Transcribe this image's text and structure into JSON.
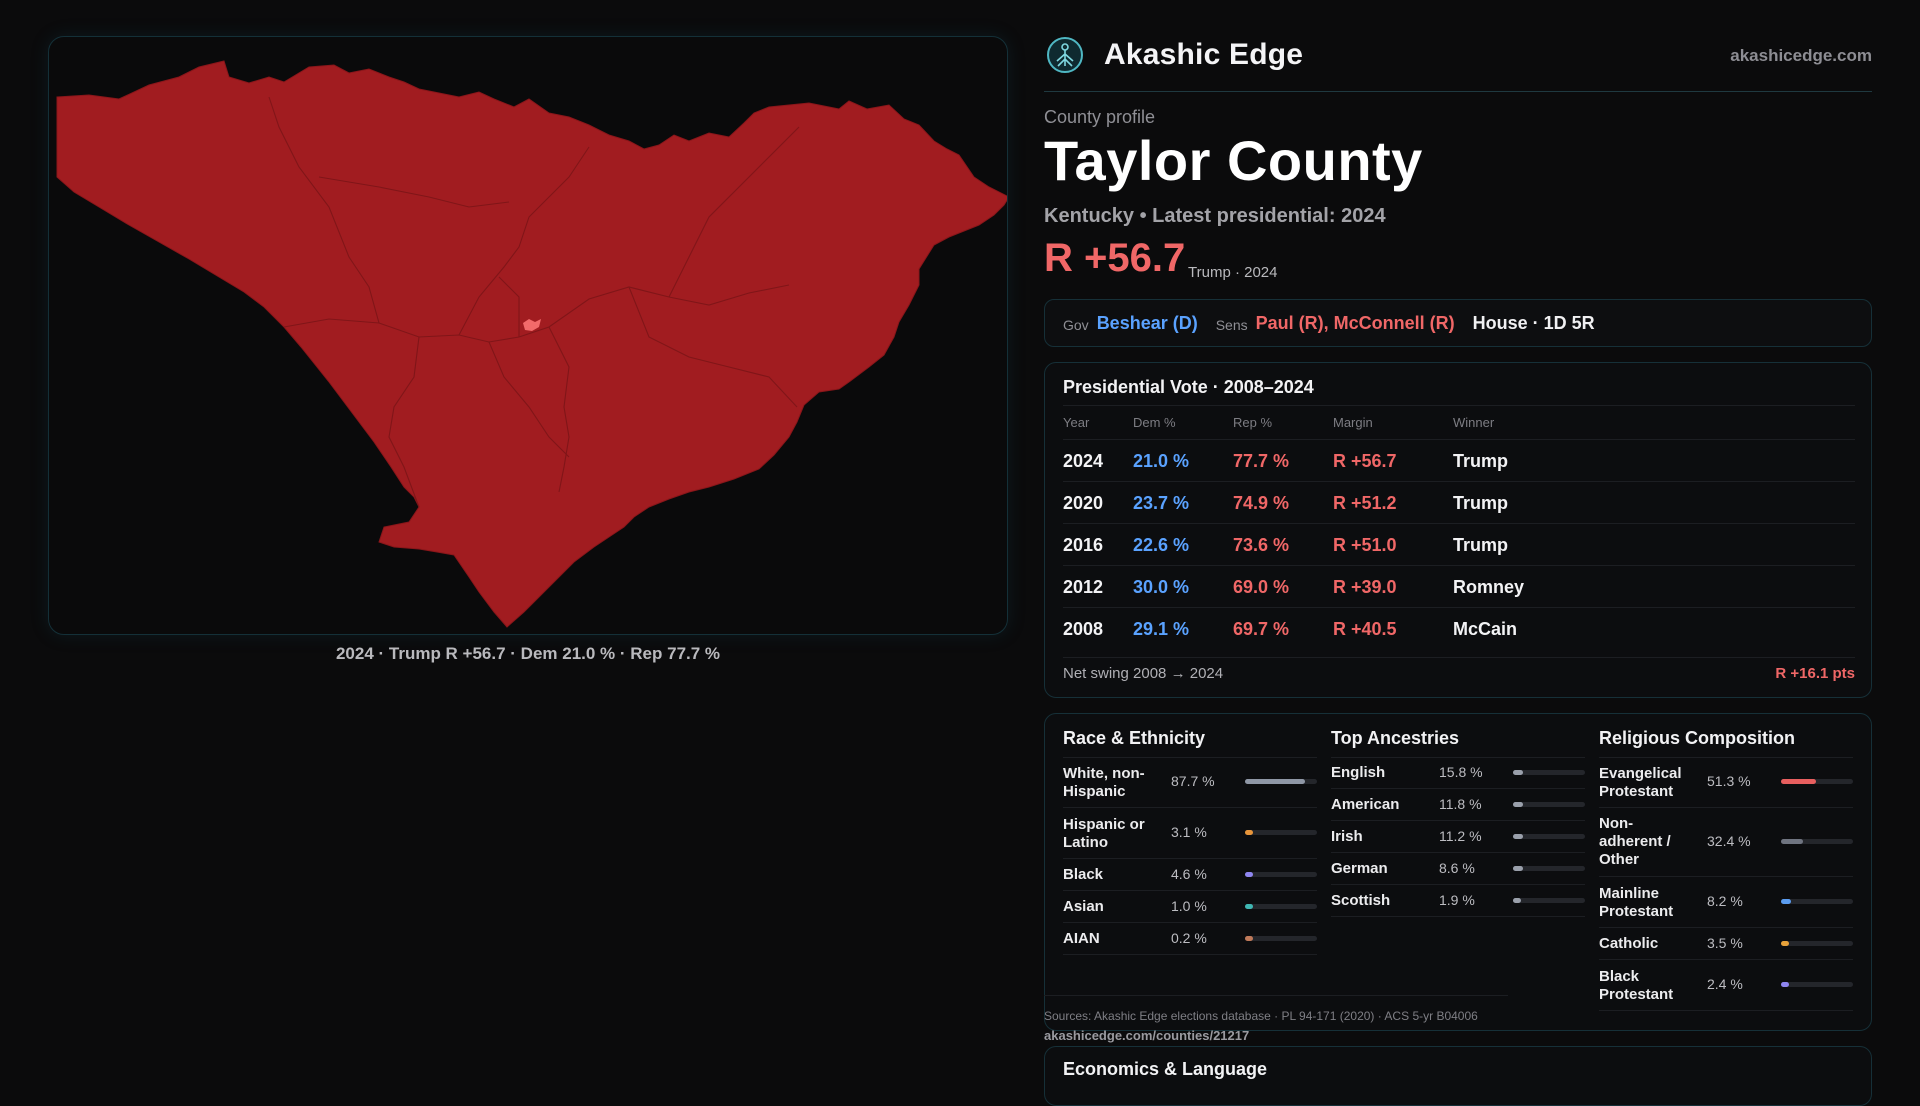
{
  "brand": {
    "name": "Akashic Edge",
    "site": "akashicedge.com"
  },
  "profile": {
    "label": "County profile",
    "county": "Taylor County",
    "subtitle": "Kentucky • Latest presidential: 2024",
    "margin": "R +56.7",
    "margin_note": "Trump · 2024"
  },
  "map": {
    "caption": "2024 · Trump R +56.7 · Dem 21.0 % · Rep 77.7 %",
    "fill_color": "#a11c20",
    "marker_color": "#f26a6a"
  },
  "officials": {
    "gov_key": "Gov",
    "gov_value": "Beshear (D)",
    "sens_key": "Sens",
    "sens_value": "Paul (R), McConnell (R)",
    "house": "House · 1D 5R"
  },
  "presidential": {
    "title": "Presidential Vote · 2008–2024",
    "headers": [
      "Year",
      "Dem %",
      "Rep %",
      "Margin",
      "Winner"
    ],
    "rows": [
      {
        "year": "2024",
        "dem": "21.0 %",
        "rep": "77.7 %",
        "margin": "R +56.7",
        "winner": "Trump"
      },
      {
        "year": "2020",
        "dem": "23.7 %",
        "rep": "74.9 %",
        "margin": "R +51.2",
        "winner": "Trump"
      },
      {
        "year": "2016",
        "dem": "22.6 %",
        "rep": "73.6 %",
        "margin": "R +51.0",
        "winner": "Trump"
      },
      {
        "year": "2012",
        "dem": "30.0 %",
        "rep": "69.0 %",
        "margin": "R +39.0",
        "winner": "Romney"
      },
      {
        "year": "2008",
        "dem": "29.1 %",
        "rep": "69.7 %",
        "margin": "R +40.5",
        "winner": "McCain"
      }
    ],
    "swing_label": "Net swing 2008 → 2024",
    "swing_value": "R +16.1 pts"
  },
  "race": {
    "title": "Race & Ethnicity",
    "items": [
      {
        "label": "White, non-Hispanic",
        "value": "87.7 %",
        "share": 0.877,
        "color": "#8f97a6"
      },
      {
        "label": "Hispanic or Latino",
        "value": "3.1 %",
        "share": 0.031,
        "color": "#e8953a"
      },
      {
        "label": "Black",
        "value": "4.6 %",
        "share": 0.046,
        "color": "#8f86f0"
      },
      {
        "label": "Asian",
        "value": "1.0 %",
        "share": 0.01,
        "color": "#3fb6b2"
      },
      {
        "label": "AIAN",
        "value": "0.2 %",
        "share": 0.002,
        "color": "#c07a5a"
      }
    ]
  },
  "ancestry": {
    "title": "Top Ancestries",
    "items": [
      {
        "label": "English",
        "value": "15.8 %",
        "share": 0.158,
        "color": "#9aa0ab"
      },
      {
        "label": "American",
        "value": "11.8 %",
        "share": 0.118,
        "color": "#9aa0ab"
      },
      {
        "label": "Irish",
        "value": "11.2 %",
        "share": 0.112,
        "color": "#9aa0ab"
      },
      {
        "label": "German",
        "value": "8.6 %",
        "share": 0.086,
        "color": "#9aa0ab"
      },
      {
        "label": "Scottish",
        "value": "1.9 %",
        "share": 0.019,
        "color": "#9aa0ab"
      }
    ]
  },
  "religion": {
    "title": "Religious Composition",
    "items": [
      {
        "label": "Evangelical Protestant",
        "value": "51.3 %",
        "share": 0.513,
        "color": "#e85f5f"
      },
      {
        "label": "Non-adherent / Other",
        "value": "32.4 %",
        "share": 0.324,
        "color": "#6f7480"
      },
      {
        "label": "Mainline Protestant",
        "value": "8.2 %",
        "share": 0.082,
        "color": "#5a9cf0"
      },
      {
        "label": "Catholic",
        "value": "3.5 %",
        "share": 0.035,
        "color": "#e8a23a"
      },
      {
        "label": "Black Protestant",
        "value": "2.4 %",
        "share": 0.024,
        "color": "#8f86f0"
      }
    ]
  },
  "sources": {
    "text": "Sources: Akashic Edge elections database · PL 94-171 (2020) · ACS 5-yr B04006",
    "link": "akashicedge.com/counties/21217"
  },
  "economics": {
    "title": "Economics & Language"
  }
}
